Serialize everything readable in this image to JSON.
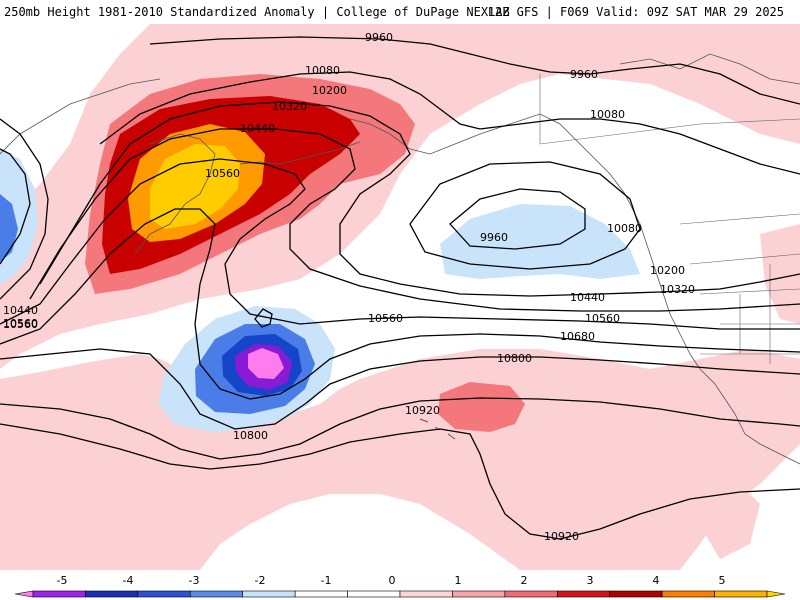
{
  "header": {
    "title_left": "250mb Height 1981-2010 Standardized Anomaly | College of DuPage NEXLAB",
    "title_right": "12Z GFS | F069 Valid: 09Z SAT MAR 29 2025"
  },
  "map": {
    "contour_levels": [
      "9960",
      "9960",
      "10080",
      "10080",
      "10200",
      "10200",
      "10320",
      "10320",
      "10440",
      "10440",
      "10560",
      "10560",
      "10560",
      "10560",
      "10680",
      "10800",
      "10800",
      "10920",
      "10920",
      "9960",
      "10080",
      "10440",
      "10560"
    ],
    "anomaly_colors": {
      "pos1": "#fcd1d4",
      "pos2": "#f4777b",
      "pos3": "#d11a1f",
      "pos4": "#c30000",
      "pos5": "#ff9a00",
      "pos6": "#ffcc00",
      "neg1": "#c9e3fb",
      "neg2": "#4b7de8",
      "neg3": "#1546c9",
      "neg4": "#8a1bd4",
      "neg5": "#ff7bf0"
    }
  },
  "colorbar": {
    "tick_labels": [
      "-5",
      "-4",
      "-3",
      "-2",
      "-1",
      "0",
      "1",
      "2",
      "3",
      "4",
      "5"
    ],
    "segment_colors": [
      "#ff7bf0",
      "#a020f0",
      "#1a2fb5",
      "#2a52d6",
      "#5b8aee",
      "#c6e2fb",
      "#ffffff",
      "#ffffff",
      "#fcd6d8",
      "#f7a3a7",
      "#f26a70",
      "#d6111a",
      "#b00000",
      "#ff7f00",
      "#ffb000",
      "#ffd700"
    ]
  }
}
